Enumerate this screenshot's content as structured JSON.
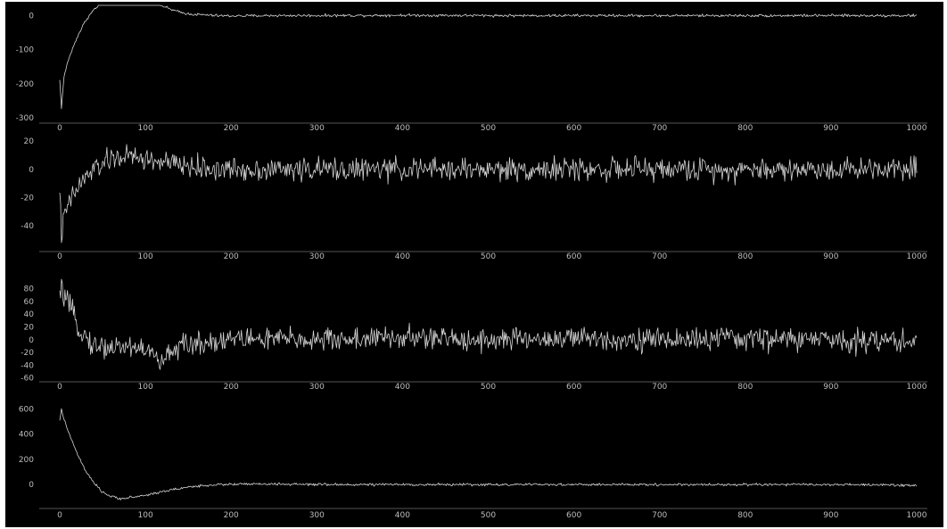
{
  "background_color": "#000000",
  "line_color": "#d4d4d4",
  "text_color": "#bdbdbd",
  "chart_data": [
    {
      "type": "line",
      "title": "",
      "xlabel": "",
      "ylabel": "",
      "xlim": [
        0,
        1000
      ],
      "ylim": [
        -300,
        30
      ],
      "xticks": [
        "0",
        "100",
        "200",
        "300",
        "400",
        "500",
        "600",
        "700",
        "800",
        "900",
        "1000"
      ],
      "yticks": [
        "0",
        "-100",
        "-200",
        "-300"
      ],
      "ytick_values": [
        0,
        -100,
        -200,
        -300
      ],
      "grid": false,
      "series": [
        {
          "description": "starts near -270, rises to about +55 near x=70, settles to about 0 by x=180",
          "x": [
            0,
            2,
            5,
            10,
            20,
            30,
            40,
            50,
            60,
            70,
            80,
            90,
            100,
            110,
            120,
            130,
            140,
            150,
            160,
            170,
            180,
            200,
            250,
            300,
            400,
            500,
            600,
            700,
            800,
            900,
            1000
          ],
          "y": [
            -190,
            -270,
            -180,
            -130,
            -65,
            -15,
            18,
            38,
            50,
            55,
            54,
            50,
            45,
            38,
            28,
            18,
            10,
            5,
            3,
            2,
            0,
            -1,
            0,
            0,
            1,
            0,
            0,
            0,
            0,
            0,
            0
          ],
          "noise": 2
        }
      ]
    },
    {
      "type": "line",
      "title": "",
      "xlabel": "",
      "ylabel": "",
      "xlim": [
        0,
        1000
      ],
      "ylim": [
        -52,
        22
      ],
      "xticks": [
        "0",
        "100",
        "200",
        "300",
        "400",
        "500",
        "600",
        "700",
        "800",
        "900",
        "1000"
      ],
      "yticks": [
        "20",
        "0",
        "-20",
        "-40"
      ],
      "ytick_values": [
        20,
        0,
        -20,
        -40
      ],
      "grid": false,
      "series": [
        {
          "description": "starts near -48, rises to about +10 near x=70, then oscillates around 0",
          "x": [
            0,
            2,
            5,
            10,
            20,
            30,
            40,
            50,
            60,
            70,
            80,
            90,
            100,
            120,
            140,
            160,
            180,
            200,
            300,
            400,
            500,
            600,
            700,
            800,
            900,
            1000
          ],
          "y": [
            -12,
            -48,
            -35,
            -25,
            -14,
            -6,
            0,
            4,
            7,
            9,
            9,
            8,
            7,
            5,
            3,
            1,
            0,
            0,
            0,
            0,
            0,
            0,
            0,
            0,
            0,
            2
          ],
          "noise": 4
        }
      ]
    },
    {
      "type": "line",
      "title": "",
      "xlabel": "",
      "ylabel": "",
      "xlim": [
        0,
        1000
      ],
      "ylim": [
        -62,
        95
      ],
      "xticks": [
        "0",
        "100",
        "200",
        "300",
        "400",
        "500",
        "600",
        "700",
        "800",
        "900",
        "1000"
      ],
      "yticks": [
        "80",
        "60",
        "40",
        "20",
        "0",
        "-20",
        "-40",
        "-60"
      ],
      "ytick_values": [
        80,
        60,
        40,
        20,
        0,
        -20,
        -40,
        -60
      ],
      "grid": false,
      "series": [
        {
          "description": "starts near +85, drops to about -10 by x=40, dips to about -45 near x=120, then oscillates around 0",
          "x": [
            0,
            2,
            5,
            10,
            20,
            30,
            40,
            60,
            80,
            100,
            110,
            120,
            130,
            150,
            200,
            300,
            400,
            500,
            600,
            700,
            800,
            900,
            1000
          ],
          "y": [
            65,
            85,
            70,
            55,
            25,
            5,
            -10,
            -12,
            -10,
            -15,
            -25,
            -40,
            -15,
            -8,
            2,
            0,
            3,
            0,
            2,
            0,
            2,
            0,
            -2
          ],
          "noise": 9
        }
      ]
    },
    {
      "type": "line",
      "title": "",
      "xlabel": "",
      "ylabel": "",
      "xlim": [
        0,
        1000
      ],
      "ylim": [
        -140,
        660
      ],
      "xticks": [
        "0",
        "100",
        "200",
        "300",
        "400",
        "500",
        "600",
        "700",
        "800",
        "900",
        "1000"
      ],
      "yticks": [
        "600",
        "400",
        "200",
        "0"
      ],
      "ytick_values": [
        600,
        400,
        200,
        0
      ],
      "grid": false,
      "series": [
        {
          "description": "starts near +600, decays to about -110 near x=70, settles around 0 by x=200",
          "x": [
            0,
            2,
            5,
            10,
            20,
            30,
            40,
            50,
            60,
            70,
            80,
            100,
            120,
            140,
            160,
            180,
            200,
            250,
            300,
            400,
            500,
            600,
            700,
            800,
            900,
            1000
          ],
          "y": [
            500,
            600,
            520,
            420,
            250,
            110,
            10,
            -60,
            -95,
            -110,
            -105,
            -85,
            -55,
            -30,
            -12,
            -2,
            3,
            4,
            0,
            0,
            0,
            0,
            0,
            0,
            0,
            -5
          ],
          "noise": 5
        }
      ]
    }
  ]
}
